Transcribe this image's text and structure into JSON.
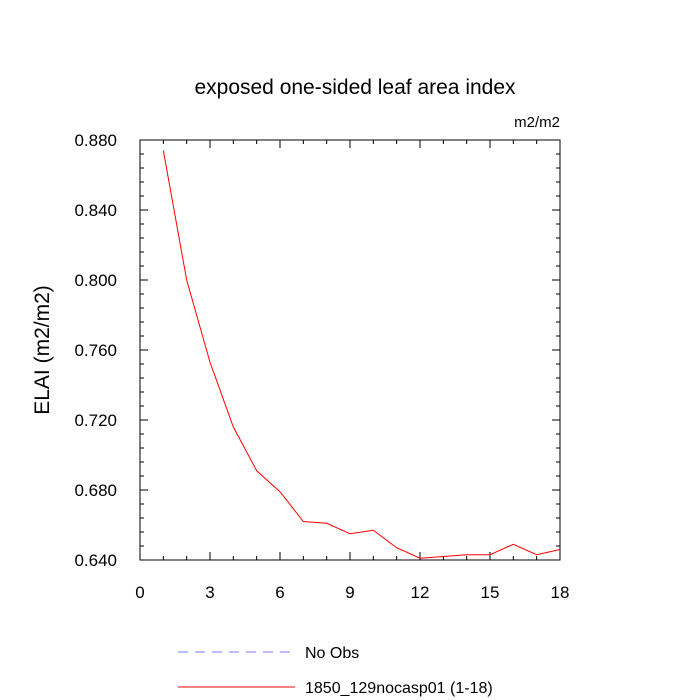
{
  "chart_data": {
    "type": "line",
    "title": "exposed one-sided leaf area index",
    "units_label": "m2/m2",
    "xlabel": "",
    "ylabel": "ELAI  (m2/m2)",
    "xlim": [
      0,
      18
    ],
    "ylim": [
      0.64,
      0.88
    ],
    "x_ticks": [
      0,
      3,
      6,
      9,
      12,
      15,
      18
    ],
    "x_tick_labels": [
      "0",
      "3",
      "6",
      "9",
      "12",
      "15",
      "18"
    ],
    "y_ticks": [
      0.64,
      0.68,
      0.72,
      0.76,
      0.8,
      0.84,
      0.88
    ],
    "y_tick_labels": [
      "0.640",
      "0.680",
      "0.720",
      "0.760",
      "0.800",
      "0.840",
      "0.880"
    ],
    "series": [
      {
        "name": "1850_129nocasp01 (1-18)",
        "color": "#ff0000",
        "style": "solid",
        "x": [
          1,
          2,
          3,
          4,
          5,
          6,
          7,
          8,
          9,
          10,
          11,
          12,
          13,
          14,
          15,
          16,
          17,
          18
        ],
        "values": [
          0.874,
          0.8,
          0.753,
          0.716,
          0.691,
          0.679,
          0.662,
          0.661,
          0.655,
          0.657,
          0.647,
          0.641,
          0.642,
          0.643,
          0.643,
          0.649,
          0.643,
          0.646
        ]
      }
    ],
    "legend": [
      {
        "label": "No Obs",
        "color": "#7777ff",
        "style": "dashed"
      },
      {
        "label": "1850_129nocasp01 (1-18)",
        "color": "#ff0000",
        "style": "solid"
      }
    ],
    "legend_position": "bottom"
  }
}
